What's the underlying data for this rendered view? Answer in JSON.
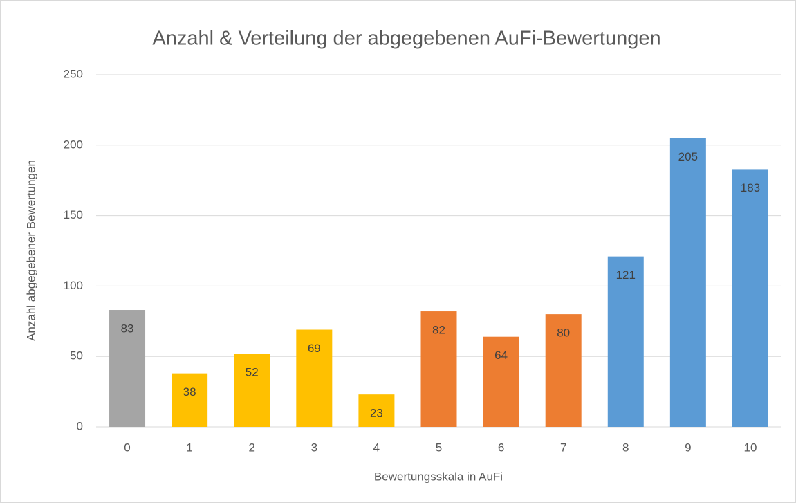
{
  "chart_data": {
    "type": "bar",
    "title": "Anzahl & Verteilung der abgegebenen AuFi-Bewertungen",
    "x_label": "Bewertungsskala in AuFi",
    "y_label": "Anzahl abgegebener Bewertungen",
    "categories": [
      "0",
      "1",
      "2",
      "3",
      "4",
      "5",
      "6",
      "7",
      "8",
      "9",
      "10"
    ],
    "values": [
      83,
      38,
      52,
      69,
      23,
      82,
      64,
      80,
      121,
      205,
      183
    ],
    "colors": [
      "#a5a5a5",
      "#ffc000",
      "#ffc000",
      "#ffc000",
      "#ffc000",
      "#ed7d31",
      "#ed7d31",
      "#ed7d31",
      "#5b9bd5",
      "#5b9bd5",
      "#5b9bd5"
    ],
    "ylim": [
      0,
      250
    ],
    "yticks": [
      0,
      50,
      100,
      150,
      200,
      250
    ],
    "grid": true
  }
}
